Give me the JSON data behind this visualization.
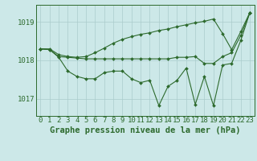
{
  "title": "Graphe pression niveau de la mer (hPa)",
  "x_labels": [
    "0",
    "1",
    "2",
    "3",
    "4",
    "5",
    "6",
    "7",
    "8",
    "9",
    "10",
    "11",
    "12",
    "13",
    "14",
    "15",
    "16",
    "17",
    "18",
    "19",
    "20",
    "21",
    "22",
    "23"
  ],
  "x_values": [
    0,
    1,
    2,
    3,
    4,
    5,
    6,
    7,
    8,
    9,
    10,
    11,
    12,
    13,
    14,
    15,
    16,
    17,
    18,
    19,
    20,
    21,
    22,
    23
  ],
  "line_max": [
    1018.3,
    1018.3,
    1018.15,
    1018.1,
    1018.08,
    1018.1,
    1018.2,
    1018.32,
    1018.45,
    1018.55,
    1018.62,
    1018.68,
    1018.72,
    1018.78,
    1018.82,
    1018.88,
    1018.93,
    1018.98,
    1019.02,
    1019.08,
    1018.7,
    1018.28,
    1018.75,
    1019.25
  ],
  "line_min": [
    1018.3,
    1018.28,
    1018.08,
    1017.72,
    1017.58,
    1017.52,
    1017.52,
    1017.68,
    1017.72,
    1017.72,
    1017.52,
    1017.42,
    1017.48,
    1016.82,
    1017.32,
    1017.48,
    1017.8,
    1016.85,
    1017.58,
    1016.82,
    1017.88,
    1017.92,
    1018.52,
    1019.25
  ],
  "line_mean": [
    1018.3,
    1018.28,
    1018.1,
    1018.08,
    1018.06,
    1018.04,
    1018.04,
    1018.04,
    1018.04,
    1018.04,
    1018.04,
    1018.04,
    1018.04,
    1018.04,
    1018.04,
    1018.08,
    1018.08,
    1018.1,
    1017.92,
    1017.92,
    1018.1,
    1018.2,
    1018.65,
    1019.25
  ],
  "ylim": [
    1016.55,
    1019.45
  ],
  "yticks": [
    1017,
    1018,
    1019
  ],
  "line_color": "#2d6a2d",
  "bg_color": "#cce8e8",
  "grid_color": "#aacccc",
  "title_color": "#2d6a2d",
  "title_fontsize": 7.5,
  "tick_fontsize": 6.5,
  "marker": "D",
  "marker_size": 2.0,
  "lw": 0.8
}
